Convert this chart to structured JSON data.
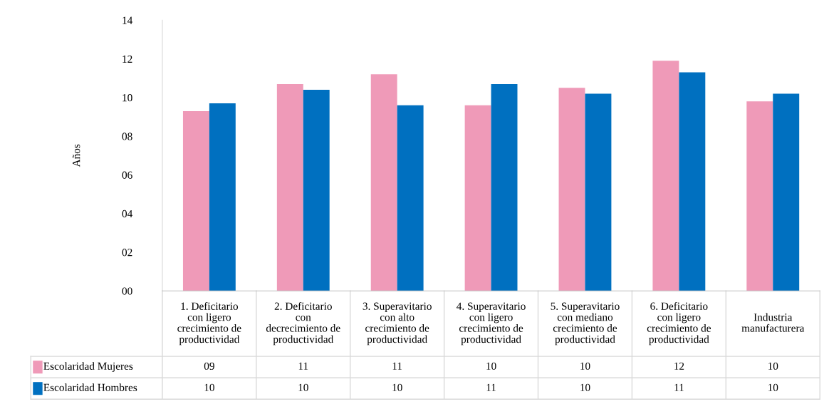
{
  "chart_data": {
    "type": "bar",
    "ylabel": "Años",
    "categories": [
      "1. Deficitario con ligero crecimiento de productividad",
      "2. Deficitario con decrecimiento de productividad",
      "3. Superavitario con alto crecimiento de productividad",
      "4. Superavitario con ligero crecimiento de productividad",
      "5. Superavitario con mediano crecimiento de productividad",
      "6. Deficitario con ligero crecimiento de productividad",
      "Industria manufacturera"
    ],
    "series": [
      {
        "name": "Escolaridad Mujeres",
        "color": "#ef9ab8",
        "values": [
          9.3,
          10.7,
          11.2,
          9.6,
          10.5,
          11.9,
          9.8
        ],
        "value_labels": [
          "09",
          "11",
          "11",
          "10",
          "10",
          "12",
          "10"
        ]
      },
      {
        "name": "Escolaridad Hombres",
        "color": "#0070c0",
        "values": [
          9.7,
          10.4,
          9.6,
          10.7,
          10.2,
          11.3,
          10.2
        ],
        "value_labels": [
          "10",
          "10",
          "10",
          "11",
          "10",
          "11",
          "10"
        ]
      }
    ],
    "ylim": [
      0,
      14
    ],
    "yticks": [
      {
        "value": 0,
        "label": "00"
      },
      {
        "value": 2,
        "label": "02"
      },
      {
        "value": 4,
        "label": "04"
      },
      {
        "value": 6,
        "label": "06"
      },
      {
        "value": 8,
        "label": "08"
      },
      {
        "value": 10,
        "label": "10"
      },
      {
        "value": 12,
        "label": "12"
      },
      {
        "value": 14,
        "label": "14"
      }
    ],
    "grid": false,
    "legend": "bottom"
  }
}
